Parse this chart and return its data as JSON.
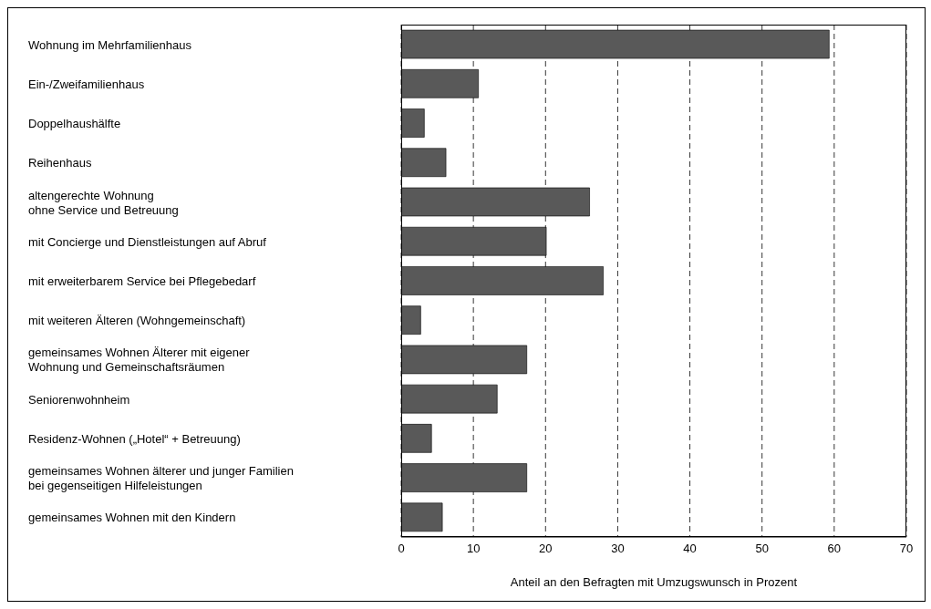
{
  "chart_data": {
    "type": "bar",
    "orientation": "horizontal",
    "xlabel": "Anteil an den Befragten mit Umzugswunsch in Prozent",
    "categories": [
      "Wohnung im Mehrfamilienhaus",
      "Ein-/Zweifamilienhaus",
      "Doppelhaushälfte",
      "Reihenhaus",
      "altengerechte Wohnung\nohne Service und Betreuung",
      "mit Concierge und Dienstleistungen auf Abruf",
      "mit erweiterbarem Service bei Pflegebedarf",
      "mit weiteren Älteren (Wohngemeinschaft)",
      "gemeinsames Wohnen Älterer mit eigener\nWohnung und Gemeinschaftsräumen",
      "Seniorenwohnheim",
      "Residenz-Wohnen („Hotel“ + Betreuung)",
      "gemeinsames Wohnen älterer und junger Familien\nbei gegenseitigen Hilfeleistungen",
      "gemeinsames Wohnen mit den Kindern"
    ],
    "values": [
      59.3,
      10.7,
      3.2,
      6.2,
      26.1,
      20.1,
      28.0,
      2.7,
      17.4,
      13.3,
      4.2,
      17.4,
      5.7
    ],
    "color": "#595959",
    "xlim": [
      0,
      70
    ],
    "xticks": [
      0,
      10,
      20,
      30,
      40,
      50,
      60,
      70
    ],
    "grid": "x",
    "legend": false
  }
}
